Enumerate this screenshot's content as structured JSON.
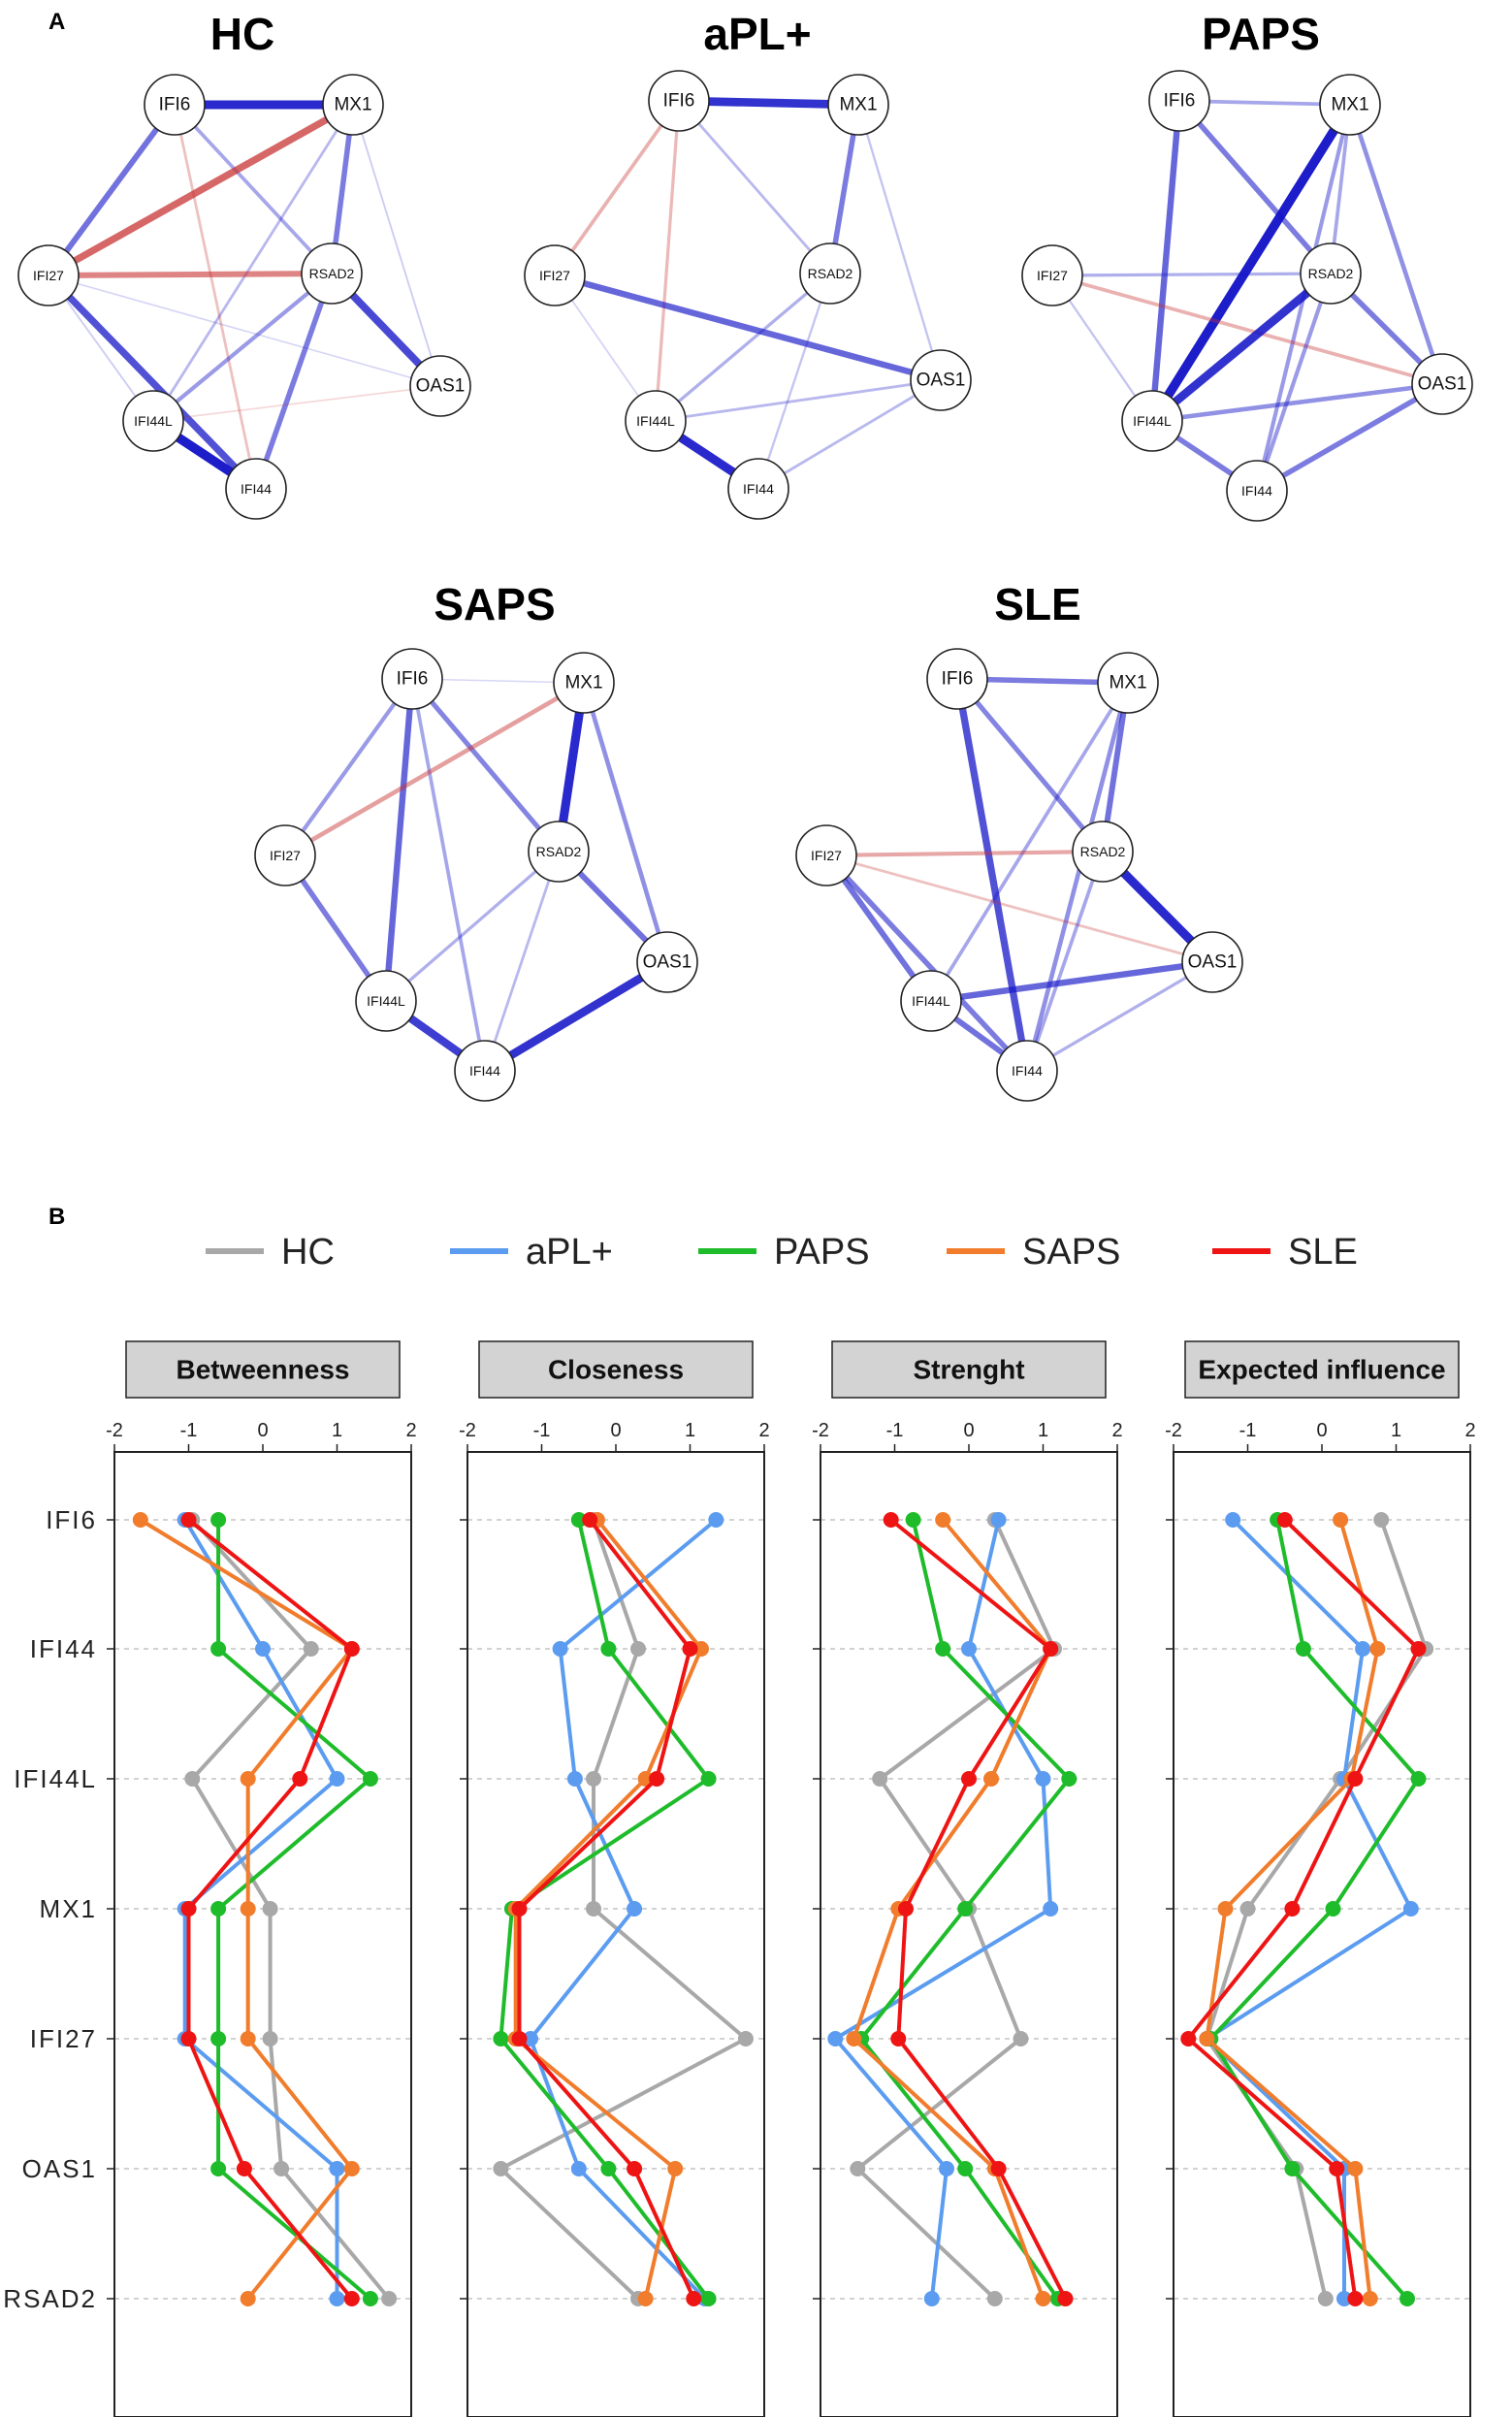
{
  "panel_labels": {
    "a": "A",
    "b": "B"
  },
  "colors": {
    "positive": "#1414c8",
    "negative": "#c83232"
  },
  "networks": [
    {
      "title": "HC",
      "nodes": [
        "IFI6",
        "MX1",
        "IFI27",
        "RSAD2",
        "OAS1",
        "IFI44L",
        "IFI44"
      ],
      "edges": [
        [
          "IFI6",
          "MX1",
          0.9
        ],
        [
          "IFI6",
          "IFI27",
          0.55
        ],
        [
          "IFI6",
          "RSAD2",
          0.3
        ],
        [
          "IFI6",
          "IFI44",
          -0.2
        ],
        [
          "MX1",
          "IFI27",
          -0.7
        ],
        [
          "MX1",
          "RSAD2",
          0.5
        ],
        [
          "MX1",
          "OAS1",
          0.1
        ],
        [
          "MX1",
          "IFI44L",
          0.2
        ],
        [
          "IFI27",
          "RSAD2",
          -0.55
        ],
        [
          "IFI27",
          "IFI44",
          0.7
        ],
        [
          "IFI27",
          "OAS1",
          0.07
        ],
        [
          "RSAD2",
          "OAS1",
          0.75
        ],
        [
          "RSAD2",
          "IFI44L",
          0.35
        ],
        [
          "RSAD2",
          "IFI44",
          0.5
        ],
        [
          "IFI44L",
          "IFI44",
          0.95
        ],
        [
          "OAS1",
          "IFI44L",
          -0.08
        ],
        [
          "IFI27",
          "IFI44L",
          0.1
        ]
      ]
    },
    {
      "title": "aPL+",
      "nodes": [
        "IFI6",
        "MX1",
        "IFI27",
        "RSAD2",
        "OAS1",
        "IFI44L",
        "IFI44"
      ],
      "edges": [
        [
          "IFI6",
          "MX1",
          0.85
        ],
        [
          "IFI6",
          "IFI27",
          -0.3
        ],
        [
          "IFI6",
          "RSAD2",
          0.2
        ],
        [
          "IFI6",
          "IFI44L",
          -0.25
        ],
        [
          "MX1",
          "RSAD2",
          0.5
        ],
        [
          "MX1",
          "OAS1",
          0.15
        ],
        [
          "IFI27",
          "OAS1",
          0.6
        ],
        [
          "IFI27",
          "IFI44L",
          0.08
        ],
        [
          "RSAD2",
          "IFI44L",
          0.25
        ],
        [
          "RSAD2",
          "IFI44",
          0.15
        ],
        [
          "IFI44L",
          "IFI44",
          0.9
        ],
        [
          "OAS1",
          "IFI44L",
          0.2
        ],
        [
          "OAS1",
          "IFI44",
          0.2
        ]
      ]
    },
    {
      "title": "PAPS",
      "nodes": [
        "IFI6",
        "MX1",
        "IFI27",
        "RSAD2",
        "OAS1",
        "IFI44L",
        "IFI44"
      ],
      "edges": [
        [
          "IFI6",
          "MX1",
          0.3
        ],
        [
          "IFI6",
          "RSAD2",
          0.5
        ],
        [
          "IFI6",
          "IFI44L",
          0.6
        ],
        [
          "MX1",
          "IFI44L",
          0.95
        ],
        [
          "MX1",
          "OAS1",
          0.4
        ],
        [
          "MX1",
          "RSAD2",
          0.3
        ],
        [
          "MX1",
          "IFI44",
          0.35
        ],
        [
          "IFI27",
          "RSAD2",
          0.25
        ],
        [
          "IFI27",
          "OAS1",
          -0.3
        ],
        [
          "IFI27",
          "IFI44L",
          0.15
        ],
        [
          "RSAD2",
          "OAS1",
          0.5
        ],
        [
          "RSAD2",
          "IFI44L",
          0.85
        ],
        [
          "RSAD2",
          "IFI44",
          0.35
        ],
        [
          "OAS1",
          "IFI44L",
          0.4
        ],
        [
          "OAS1",
          "IFI44",
          0.5
        ],
        [
          "IFI44L",
          "IFI44",
          0.5
        ]
      ]
    },
    {
      "title": "SAPS",
      "nodes": [
        "IFI6",
        "MX1",
        "IFI27",
        "RSAD2",
        "OAS1",
        "IFI44L",
        "IFI44"
      ],
      "edges": [
        [
          "IFI6",
          "MX1",
          0.06
        ],
        [
          "IFI6",
          "IFI27",
          0.35
        ],
        [
          "IFI6",
          "RSAD2",
          0.45
        ],
        [
          "IFI6",
          "IFI44L",
          0.6
        ],
        [
          "IFI6",
          "IFI44",
          0.3
        ],
        [
          "MX1",
          "IFI27",
          -0.4
        ],
        [
          "MX1",
          "RSAD2",
          0.9
        ],
        [
          "MX1",
          "OAS1",
          0.4
        ],
        [
          "IFI27",
          "IFI44L",
          0.5
        ],
        [
          "RSAD2",
          "OAS1",
          0.55
        ],
        [
          "RSAD2",
          "IFI44L",
          0.25
        ],
        [
          "RSAD2",
          "IFI44",
          0.2
        ],
        [
          "OAS1",
          "IFI44",
          0.85
        ],
        [
          "IFI44L",
          "IFI44",
          0.8
        ]
      ]
    },
    {
      "title": "SLE",
      "nodes": [
        "IFI6",
        "MX1",
        "IFI27",
        "RSAD2",
        "OAS1",
        "IFI44L",
        "IFI44"
      ],
      "edges": [
        [
          "IFI6",
          "MX1",
          0.5
        ],
        [
          "IFI6",
          "RSAD2",
          0.45
        ],
        [
          "IFI6",
          "IFI44",
          0.7
        ],
        [
          "MX1",
          "RSAD2",
          0.55
        ],
        [
          "MX1",
          "IFI44",
          0.4
        ],
        [
          "MX1",
          "IFI44L",
          0.3
        ],
        [
          "IFI27",
          "RSAD2",
          -0.35
        ],
        [
          "IFI27",
          "OAS1",
          -0.2
        ],
        [
          "IFI27",
          "IFI44L",
          0.55
        ],
        [
          "IFI27",
          "IFI44",
          0.5
        ],
        [
          "RSAD2",
          "OAS1",
          0.9
        ],
        [
          "RSAD2",
          "IFI44",
          0.3
        ],
        [
          "OAS1",
          "IFI44L",
          0.6
        ],
        [
          "OAS1",
          "IFI44",
          0.25
        ],
        [
          "IFI44L",
          "IFI44",
          0.55
        ]
      ]
    }
  ],
  "chart_data": {
    "type": "line",
    "legend": [
      {
        "name": "HC",
        "color": "#a8a8a8"
      },
      {
        "name": "aPL+",
        "color": "#5b9cf0"
      },
      {
        "name": "PAPS",
        "color": "#1ebc2a"
      },
      {
        "name": "SAPS",
        "color": "#f07c2c"
      },
      {
        "name": "SLE",
        "color": "#ee1414"
      }
    ],
    "categories": [
      "IFI6",
      "IFI44",
      "IFI44L",
      "MX1",
      "IFI27",
      "OAS1",
      "RSAD2"
    ],
    "xlim": [
      -2,
      2
    ],
    "xticks": [
      -2,
      -1,
      0,
      1,
      2
    ],
    "xtick_labels": [
      "-2",
      "-1",
      "0",
      "1",
      "2"
    ],
    "facets": [
      {
        "title": "Betweenness",
        "series": [
          {
            "name": "HC",
            "values": [
              -0.95,
              0.65,
              -0.95,
              0.1,
              0.1,
              0.25,
              1.7
            ]
          },
          {
            "name": "aPL+",
            "values": [
              -1.05,
              0.0,
              1.0,
              -1.05,
              -1.05,
              1.0,
              1.0
            ]
          },
          {
            "name": "PAPS",
            "values": [
              -0.6,
              -0.6,
              1.45,
              -0.6,
              -0.6,
              -0.6,
              1.45
            ]
          },
          {
            "name": "SAPS",
            "values": [
              -1.65,
              1.2,
              -0.2,
              -0.2,
              -0.2,
              1.2,
              -0.2
            ]
          },
          {
            "name": "SLE",
            "values": [
              -1.0,
              1.2,
              0.5,
              -1.0,
              -1.0,
              -0.25,
              1.2
            ]
          }
        ]
      },
      {
        "title": "Closeness",
        "series": [
          {
            "name": "HC",
            "values": [
              -0.3,
              0.3,
              -0.3,
              -0.3,
              1.75,
              -1.55,
              0.3
            ]
          },
          {
            "name": "aPL+",
            "values": [
              1.35,
              -0.75,
              -0.55,
              0.25,
              -1.15,
              -0.5,
              1.2
            ]
          },
          {
            "name": "PAPS",
            "values": [
              -0.5,
              -0.1,
              1.25,
              -1.4,
              -1.55,
              -0.1,
              1.25
            ]
          },
          {
            "name": "SAPS",
            "values": [
              -0.25,
              1.15,
              0.4,
              -1.35,
              -1.35,
              0.8,
              0.4
            ]
          },
          {
            "name": "SLE",
            "values": [
              -0.35,
              1.0,
              0.55,
              -1.3,
              -1.3,
              0.25,
              1.05
            ]
          }
        ]
      },
      {
        "title": "Strenght",
        "series": [
          {
            "name": "HC",
            "values": [
              0.35,
              1.15,
              -1.2,
              0.0,
              0.7,
              -1.5,
              0.35
            ]
          },
          {
            "name": "aPL+",
            "values": [
              0.4,
              0.0,
              1.0,
              1.1,
              -1.8,
              -0.3,
              -0.5
            ]
          },
          {
            "name": "PAPS",
            "values": [
              -0.75,
              -0.35,
              1.35,
              -0.05,
              -1.45,
              -0.05,
              1.2
            ]
          },
          {
            "name": "SAPS",
            "values": [
              -0.35,
              1.1,
              0.3,
              -0.95,
              -1.55,
              0.35,
              1.0
            ]
          },
          {
            "name": "SLE",
            "values": [
              -1.05,
              1.1,
              0.0,
              -0.85,
              -0.95,
              0.4,
              1.3
            ]
          }
        ]
      },
      {
        "title": "Expected influence",
        "series": [
          {
            "name": "HC",
            "values": [
              0.8,
              1.4,
              0.25,
              -1.0,
              -1.55,
              -0.35,
              0.05
            ]
          },
          {
            "name": "aPL+",
            "values": [
              -1.2,
              0.55,
              0.3,
              1.2,
              -1.55,
              0.3,
              0.3
            ]
          },
          {
            "name": "PAPS",
            "values": [
              -0.6,
              -0.25,
              1.3,
              0.15,
              -1.5,
              -0.4,
              1.15
            ]
          },
          {
            "name": "SAPS",
            "values": [
              0.25,
              0.75,
              0.4,
              -1.3,
              -1.55,
              0.45,
              0.65
            ]
          },
          {
            "name": "SLE",
            "values": [
              -0.5,
              1.3,
              0.45,
              -0.4,
              -1.8,
              0.2,
              0.45
            ]
          }
        ]
      }
    ]
  }
}
